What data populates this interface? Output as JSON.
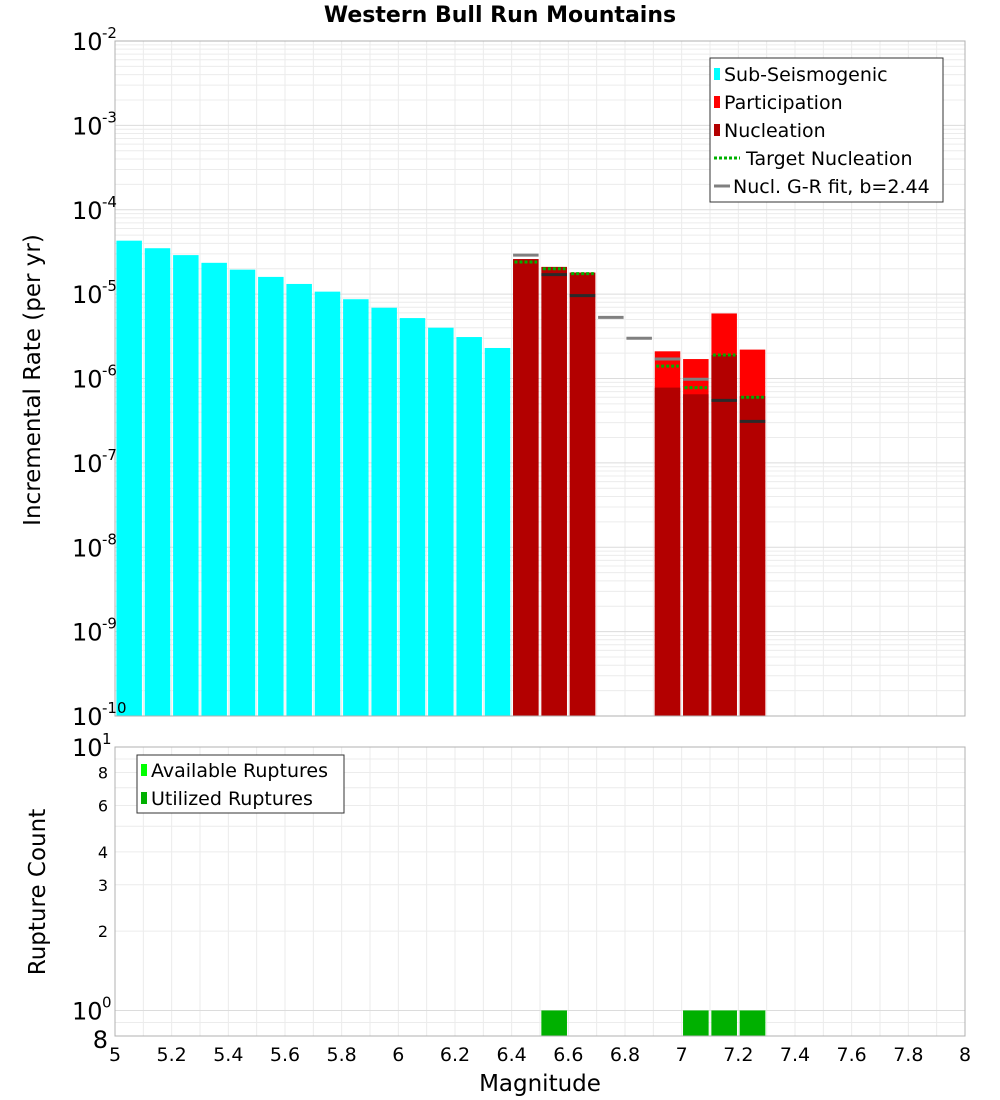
{
  "chart_data": [
    {
      "type": "bar",
      "title": "Western Bull Run Mountains",
      "xlabel": "",
      "ylabel": "Incremental Rate (per yr)",
      "yscale": "log",
      "xlim": [
        5,
        8
      ],
      "ylim": [
        1e-10,
        0.01
      ],
      "y_tick_exponents": [
        -10,
        -9,
        -8,
        -7,
        -6,
        -5,
        -4,
        -3,
        -2
      ],
      "grid": true,
      "legend_position": "top-right",
      "legend": [
        "Sub-Seismogenic",
        "Participation",
        "Nucleation",
        "Target Nucleation",
        "Nucl. G-R fit, b=2.44"
      ],
      "bar_width": 0.09,
      "series": [
        {
          "name": "Sub-Seismogenic",
          "kind": "bar",
          "color": "#00ffff",
          "x": [
            5.05,
            5.15,
            5.25,
            5.35,
            5.45,
            5.55,
            5.65,
            5.75,
            5.85,
            5.95,
            6.05,
            6.15,
            6.25,
            6.35
          ],
          "values": [
            4.3e-05,
            3.5e-05,
            2.9e-05,
            2.35e-05,
            1.95e-05,
            1.6e-05,
            1.32e-05,
            1.07e-05,
            8.7e-06,
            6.9e-06,
            5.2e-06,
            4e-06,
            3.1e-06,
            2.3e-06
          ]
        },
        {
          "name": "Participation",
          "kind": "bar",
          "color": "#ff0000",
          "x": [
            6.45,
            6.55,
            6.65,
            6.95,
            7.05,
            7.15,
            7.25
          ],
          "values": [
            2.6e-05,
            2.1e-05,
            1.8e-05,
            2.1e-06,
            1.7e-06,
            5.9e-06,
            2.2e-06
          ]
        },
        {
          "name": "Nucleation",
          "kind": "bar",
          "color": "#b30000",
          "x": [
            6.45,
            6.55,
            6.65,
            6.95,
            7.05,
            7.15,
            7.25
          ],
          "values": [
            2.6e-05,
            2.1e-05,
            1.8e-05,
            7.8e-07,
            6.5e-07,
            1.9e-06,
            6.2e-07
          ]
        },
        {
          "name": "Target Nucleation",
          "kind": "segment-dotted",
          "color": "#00b000",
          "x": [
            6.45,
            6.55,
            6.65,
            6.95,
            7.05,
            7.15,
            7.25
          ],
          "values": [
            2.4e-05,
            2e-05,
            1.75e-05,
            1.4e-06,
            7.8e-07,
            1.9e-06,
            6e-07
          ]
        },
        {
          "name": "Nucl. G-R fit, b=2.44",
          "kind": "segment",
          "color": "#808080",
          "x": [
            6.45,
            6.55,
            6.65,
            6.75,
            6.85,
            6.95,
            7.05,
            7.15,
            7.25
          ],
          "values": [
            2.9e-05,
            1.7e-05,
            9.6e-06,
            5.3e-06,
            3e-06,
            1.7e-06,
            9.8e-07,
            5.5e-07,
            3.1e-07
          ]
        }
      ]
    },
    {
      "type": "bar",
      "title": "",
      "xlabel": "Magnitude",
      "ylabel": "Rupture Count",
      "yscale": "log",
      "xlim": [
        5,
        8
      ],
      "ylim": [
        0.8,
        10
      ],
      "x_ticks": [
        "5",
        "5.2",
        "5.4",
        "5.6",
        "5.8",
        "6",
        "6.2",
        "6.4",
        "6.6",
        "6.8",
        "7",
        "7.2",
        "7.4",
        "7.6",
        "7.8",
        "8"
      ],
      "y_major_ticks": [
        {
          "base": "10",
          "exp": "0",
          "value": 1
        },
        {
          "base": "10",
          "exp": "1",
          "value": 10
        }
      ],
      "y_minor_tick_labels": [
        {
          "label": "8",
          "value": 0.8
        },
        {
          "label": "2",
          "value": 2
        },
        {
          "label": "3",
          "value": 3
        },
        {
          "label": "4",
          "value": 4
        },
        {
          "label": "6",
          "value": 6
        },
        {
          "label": "8",
          "value": 8
        }
      ],
      "grid": true,
      "legend_position": "top-left",
      "legend": [
        "Available Ruptures",
        "Utilized Ruptures"
      ],
      "bar_width": 0.09,
      "series": [
        {
          "name": "Available Ruptures",
          "kind": "bar",
          "color": "#00ff00",
          "x": [
            6.55,
            7.05,
            7.15,
            7.25
          ],
          "values": [
            1,
            1,
            1,
            1
          ]
        },
        {
          "name": "Utilized Ruptures",
          "kind": "bar",
          "color": "#00b000",
          "x": [
            6.55,
            7.05,
            7.15,
            7.25
          ],
          "values": [
            1,
            1,
            1,
            1
          ]
        }
      ]
    }
  ]
}
